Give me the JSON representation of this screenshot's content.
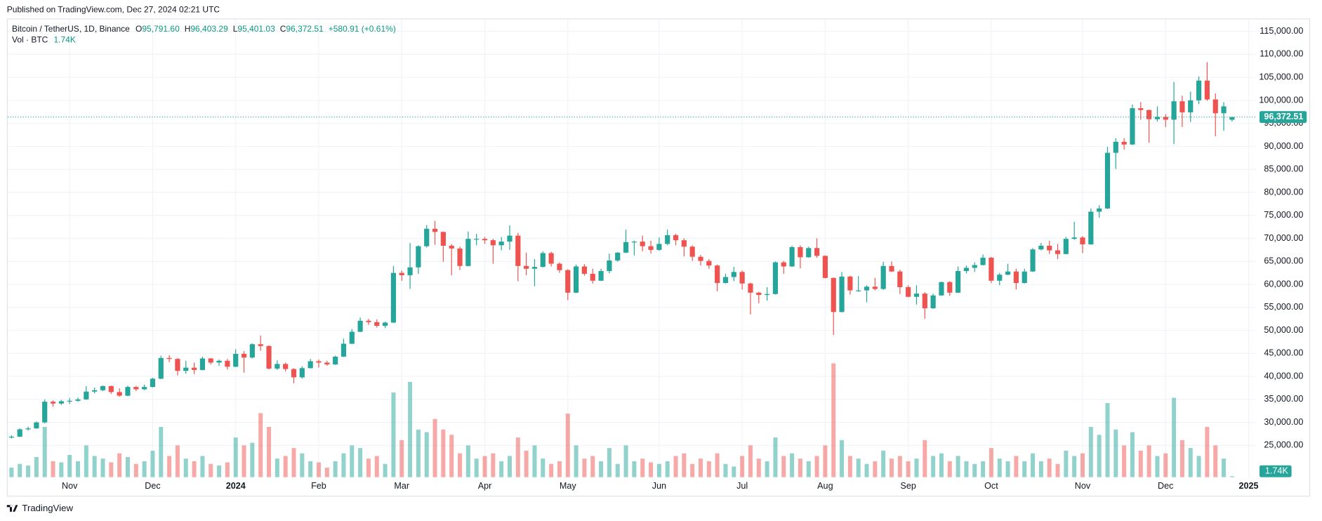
{
  "header": "Published on TradingView.com, Dec 27, 2024 02:21 UTC",
  "footer": "TradingView",
  "chart_data": {
    "type": "candlestick",
    "symbol": "Bitcoin / TetherUS, 1D, Binance",
    "legend": {
      "keys": [
        "O",
        "H",
        "L",
        "C"
      ],
      "values": [
        "95,791.60",
        "96,403.29",
        "95,401.03",
        "96,372.51"
      ],
      "change": "+580.91 (+0.61%)"
    },
    "volume_title": "Vol · BTC",
    "volume_label": "1.74K",
    "last_price_label": "96,372.51",
    "up_color": "#26a69a",
    "down_color": "#ef5350",
    "grid": true,
    "ylim": [
      18100,
      117600
    ],
    "yticks": [
      {
        "value": 25000,
        "label": "25,000.00"
      },
      {
        "value": 30000,
        "label": "30,000.00"
      },
      {
        "value": 35000,
        "label": "35,000.00"
      },
      {
        "value": 40000,
        "label": "40,000.00"
      },
      {
        "value": 45000,
        "label": "45,000.00"
      },
      {
        "value": 50000,
        "label": "50,000.00"
      },
      {
        "value": 55000,
        "label": "55,000.00"
      },
      {
        "value": 60000,
        "label": "60,000.00"
      },
      {
        "value": 65000,
        "label": "65,000.00"
      },
      {
        "value": 70000,
        "label": "70,000.00"
      },
      {
        "value": 75000,
        "label": "75,000.00"
      },
      {
        "value": 80000,
        "label": "80,000.00"
      },
      {
        "value": 85000,
        "label": "85,000.00"
      },
      {
        "value": 90000,
        "label": "90,000.00"
      },
      {
        "value": 95000,
        "label": "95,000.00"
      },
      {
        "value": 100000,
        "label": "100,000.00"
      },
      {
        "value": 105000,
        "label": "105,000.00"
      },
      {
        "value": 110000,
        "label": "110,000.00"
      },
      {
        "value": 115000,
        "label": "115,000.00"
      }
    ],
    "x": [
      null,
      null,
      null,
      null,
      null,
      null,
      null,
      "Nov",
      null,
      null,
      null,
      null,
      null,
      null,
      null,
      null,
      null,
      "Dec",
      null,
      null,
      null,
      null,
      null,
      null,
      null,
      null,
      null,
      "2024",
      null,
      null,
      null,
      null,
      null,
      null,
      null,
      null,
      null,
      "Feb",
      null,
      null,
      null,
      null,
      null,
      null,
      null,
      null,
      null,
      "Mar",
      null,
      null,
      null,
      null,
      null,
      null,
      null,
      null,
      null,
      "Apr",
      null,
      null,
      null,
      null,
      null,
      null,
      null,
      null,
      null,
      "May",
      null,
      null,
      null,
      null,
      null,
      null,
      null,
      null,
      null,
      null,
      "Jun",
      null,
      null,
      null,
      null,
      null,
      null,
      null,
      null,
      null,
      "Jul",
      null,
      null,
      null,
      null,
      null,
      null,
      null,
      null,
      null,
      "Aug",
      null,
      null,
      null,
      null,
      null,
      null,
      null,
      null,
      null,
      "Sep",
      null,
      null,
      null,
      null,
      null,
      null,
      null,
      null,
      null,
      "Oct",
      null,
      null,
      null,
      null,
      null,
      null,
      null,
      null,
      null,
      null,
      "Nov",
      null,
      null,
      null,
      null,
      null,
      null,
      null,
      null,
      null,
      "Dec",
      null,
      null,
      null,
      null,
      null,
      null,
      null,
      null,
      null,
      "2025"
    ],
    "ohlc": [
      [
        26700,
        27200,
        26500,
        26900
      ],
      [
        26900,
        28700,
        26800,
        28500
      ],
      [
        28500,
        29100,
        28200,
        28700
      ],
      [
        28700,
        30200,
        28600,
        30000
      ],
      [
        30000,
        35000,
        29800,
        34500
      ],
      [
        34500,
        34800,
        33400,
        34100
      ],
      [
        34100,
        34900,
        33800,
        34600
      ],
      [
        34600,
        35300,
        34000,
        34700
      ],
      [
        34700,
        35400,
        34500,
        35000
      ],
      [
        35000,
        37900,
        34900,
        36700
      ],
      [
        36700,
        37600,
        36300,
        37000
      ],
      [
        37000,
        38000,
        36800,
        37900
      ],
      [
        37900,
        38000,
        36200,
        36600
      ],
      [
        36600,
        37400,
        35600,
        35800
      ],
      [
        35800,
        38000,
        35700,
        37700
      ],
      [
        37700,
        37900,
        36800,
        37200
      ],
      [
        37200,
        38200,
        37000,
        37700
      ],
      [
        37700,
        39700,
        37600,
        39500
      ],
      [
        39500,
        44500,
        39400,
        44000
      ],
      [
        44000,
        44600,
        43100,
        43800
      ],
      [
        43800,
        44000,
        40200,
        41200
      ],
      [
        41200,
        43400,
        40600,
        41900
      ],
      [
        41900,
        43000,
        40500,
        41400
      ],
      [
        41400,
        44300,
        41300,
        43900
      ],
      [
        43900,
        44000,
        42600,
        43000
      ],
      [
        43000,
        43700,
        42300,
        43400
      ],
      [
        43400,
        43800,
        41500,
        42100
      ],
      [
        42100,
        45900,
        42000,
        44900
      ],
      [
        44900,
        45500,
        40800,
        44100
      ],
      [
        44100,
        47200,
        43900,
        47000
      ],
      [
        47000,
        48900,
        45600,
        46600
      ],
      [
        46600,
        46800,
        41500,
        41700
      ],
      [
        41700,
        43500,
        41400,
        42700
      ],
      [
        42700,
        43000,
        41100,
        41600
      ],
      [
        41600,
        41800,
        38500,
        39800
      ],
      [
        39800,
        42200,
        39500,
        41800
      ],
      [
        41800,
        43800,
        41700,
        43300
      ],
      [
        43300,
        43700,
        41900,
        43000
      ],
      [
        43000,
        43400,
        42300,
        42600
      ],
      [
        42600,
        44500,
        42500,
        44300
      ],
      [
        44300,
        48200,
        44200,
        47100
      ],
      [
        47100,
        50300,
        47000,
        49700
      ],
      [
        49700,
        52800,
        49600,
        52100
      ],
      [
        52100,
        52500,
        51200,
        51800
      ],
      [
        51800,
        52400,
        50600,
        51000
      ],
      [
        51000,
        51900,
        50500,
        51700
      ],
      [
        51700,
        64000,
        51600,
        62500
      ],
      [
        62500,
        63000,
        60800,
        62000
      ],
      [
        62000,
        69000,
        59000,
        63700
      ],
      [
        63700,
        68500,
        62300,
        68300
      ],
      [
        68300,
        72900,
        68000,
        72100
      ],
      [
        72100,
        73800,
        68600,
        71400
      ],
      [
        71400,
        71500,
        64900,
        68400
      ],
      [
        68400,
        68800,
        62000,
        67800
      ],
      [
        67800,
        68200,
        63100,
        64000
      ],
      [
        64000,
        71500,
        63900,
        69900
      ],
      [
        69900,
        71000,
        68500,
        69900
      ],
      [
        69900,
        70300,
        68800,
        69600
      ],
      [
        69600,
        69900,
        64500,
        68500
      ],
      [
        68500,
        70300,
        67400,
        69300
      ],
      [
        69300,
        72800,
        67500,
        70600
      ],
      [
        70600,
        71200,
        60700,
        64000
      ],
      [
        64000,
        66900,
        62000,
        63400
      ],
      [
        63400,
        65500,
        59600,
        63800
      ],
      [
        63800,
        67200,
        63700,
        66800
      ],
      [
        66800,
        67100,
        63900,
        64500
      ],
      [
        64500,
        64800,
        62500,
        63100
      ],
      [
        63100,
        63300,
        56600,
        58200
      ],
      [
        58200,
        64300,
        58100,
        63900
      ],
      [
        63900,
        64400,
        61900,
        62300
      ],
      [
        62300,
        63400,
        60200,
        60800
      ],
      [
        60800,
        63400,
        60700,
        62900
      ],
      [
        62900,
        66700,
        62400,
        65200
      ],
      [
        65200,
        67000,
        64900,
        66900
      ],
      [
        66900,
        71900,
        66800,
        69200
      ],
      [
        69200,
        69500,
        66300,
        69300
      ],
      [
        69300,
        70600,
        67200,
        68300
      ],
      [
        68300,
        69500,
        66700,
        67500
      ],
      [
        67500,
        70200,
        67300,
        68800
      ],
      [
        68800,
        71900,
        68500,
        70700
      ],
      [
        70700,
        71000,
        68500,
        69600
      ],
      [
        69600,
        70000,
        66100,
        68200
      ],
      [
        68200,
        68500,
        65100,
        66000
      ],
      [
        66000,
        66400,
        64100,
        65100
      ],
      [
        65100,
        65500,
        63400,
        64100
      ],
      [
        64100,
        64300,
        58500,
        60300
      ],
      [
        60300,
        62300,
        60200,
        61600
      ],
      [
        61600,
        63800,
        60700,
        62700
      ],
      [
        62700,
        63000,
        58900,
        60200
      ],
      [
        60200,
        60400,
        53500,
        58200
      ],
      [
        58200,
        58400,
        55900,
        57700
      ],
      [
        57700,
        59400,
        56500,
        57900
      ],
      [
        57900,
        65000,
        57800,
        64800
      ],
      [
        64800,
        65100,
        62300,
        63900
      ],
      [
        63900,
        68400,
        63800,
        68100
      ],
      [
        68100,
        68500,
        63500,
        65900
      ],
      [
        65900,
        68200,
        65800,
        67900
      ],
      [
        67900,
        70000,
        65800,
        66200
      ],
      [
        66200,
        66300,
        61300,
        61400
      ],
      [
        61400,
        61500,
        49000,
        54000
      ],
      [
        54000,
        62700,
        53900,
        61700
      ],
      [
        61700,
        61900,
        57800,
        58700
      ],
      [
        58700,
        61800,
        58400,
        58700
      ],
      [
        58700,
        59800,
        56100,
        59500
      ],
      [
        59500,
        61400,
        58700,
        59000
      ],
      [
        59000,
        64900,
        58800,
        64000
      ],
      [
        64000,
        65000,
        62700,
        62800
      ],
      [
        62800,
        63200,
        57900,
        59400
      ],
      [
        59400,
        59800,
        57200,
        57300
      ],
      [
        57300,
        59800,
        55600,
        58000
      ],
      [
        58000,
        58300,
        52500,
        54800
      ],
      [
        54800,
        58000,
        54700,
        57600
      ],
      [
        57600,
        60600,
        57500,
        60500
      ],
      [
        60500,
        60700,
        57500,
        58200
      ],
      [
        58200,
        63900,
        58100,
        62900
      ],
      [
        62900,
        64100,
        62400,
        63600
      ],
      [
        63600,
        64800,
        62700,
        64200
      ],
      [
        64200,
        66500,
        64100,
        65800
      ],
      [
        65800,
        66000,
        60300,
        60800
      ],
      [
        60800,
        62500,
        59800,
        62100
      ],
      [
        62100,
        64500,
        62000,
        62800
      ],
      [
        62800,
        63400,
        58900,
        60300
      ],
      [
        60300,
        63400,
        60200,
        62800
      ],
      [
        62800,
        67900,
        62700,
        67600
      ],
      [
        67600,
        69000,
        67400,
        68400
      ],
      [
        68400,
        69500,
        66600,
        67400
      ],
      [
        67400,
        68800,
        65500,
        66600
      ],
      [
        66600,
        70300,
        66500,
        69900
      ],
      [
        69900,
        73600,
        69700,
        70200
      ],
      [
        70200,
        70500,
        66800,
        68700
      ],
      [
        68700,
        76500,
        68600,
        75800
      ],
      [
        75800,
        77200,
        74500,
        76500
      ],
      [
        76500,
        89900,
        76400,
        88600
      ],
      [
        88600,
        91800,
        85100,
        91000
      ],
      [
        91000,
        91800,
        89300,
        90400
      ],
      [
        90400,
        99100,
        90300,
        98300
      ],
      [
        98300,
        99600,
        95800,
        97900
      ],
      [
        97900,
        98000,
        90800,
        95900
      ],
      [
        95900,
        98700,
        95400,
        96400
      ],
      [
        96400,
        97000,
        94200,
        95800
      ],
      [
        95800,
        104000,
        90500,
        99800
      ],
      [
        99800,
        101000,
        94200,
        97400
      ],
      [
        97400,
        101900,
        95300,
        100000
      ],
      [
        100000,
        105200,
        99200,
        104300
      ],
      [
        104300,
        108300,
        99900,
        100200
      ],
      [
        100200,
        101500,
        92200,
        97200
      ],
      [
        97200,
        99600,
        93400,
        98700
      ],
      [
        95791.6,
        96403.29,
        95401.03,
        96372.51
      ],
      null,
      null
    ],
    "volume": [
      18000,
      25000,
      22000,
      38000,
      95000,
      30000,
      28000,
      42000,
      30000,
      60000,
      40000,
      35000,
      28000,
      45000,
      38000,
      25000,
      30000,
      50000,
      95000,
      40000,
      60000,
      35000,
      30000,
      40000,
      25000,
      22000,
      28000,
      75000,
      60000,
      65000,
      121000,
      95000,
      35000,
      40000,
      55000,
      45000,
      30000,
      28000,
      18000,
      30000,
      45000,
      60000,
      55000,
      35000,
      40000,
      25000,
      160000,
      70000,
      180000,
      90000,
      85000,
      110000,
      90000,
      80000,
      45000,
      60000,
      35000,
      40000,
      45000,
      30000,
      40000,
      75000,
      50000,
      60000,
      35000,
      25000,
      30000,
      120000,
      60000,
      35000,
      40000,
      30000,
      55000,
      25000,
      60000,
      30000,
      35000,
      28000,
      25000,
      30000,
      40000,
      45000,
      25000,
      35000,
      30000,
      45000,
      25000,
      20000,
      40000,
      60000,
      35000,
      30000,
      75000,
      40000,
      45000,
      35000,
      30000,
      40000,
      60000,
      215000,
      70000,
      40000,
      35000,
      25000,
      30000,
      50000,
      35000,
      40000,
      30000,
      35000,
      70000,
      40000,
      45000,
      30000,
      40000,
      30000,
      25000,
      30000,
      55000,
      35000,
      30000,
      40000,
      30000,
      45000,
      30000,
      35000,
      25000,
      50000,
      40000,
      45000,
      95000,
      80000,
      140000,
      90000,
      60000,
      85000,
      50000,
      60000,
      40000,
      45000,
      150000,
      70000,
      55000,
      40000,
      95000,
      60000,
      35000,
      1740,
      null,
      null
    ]
  }
}
